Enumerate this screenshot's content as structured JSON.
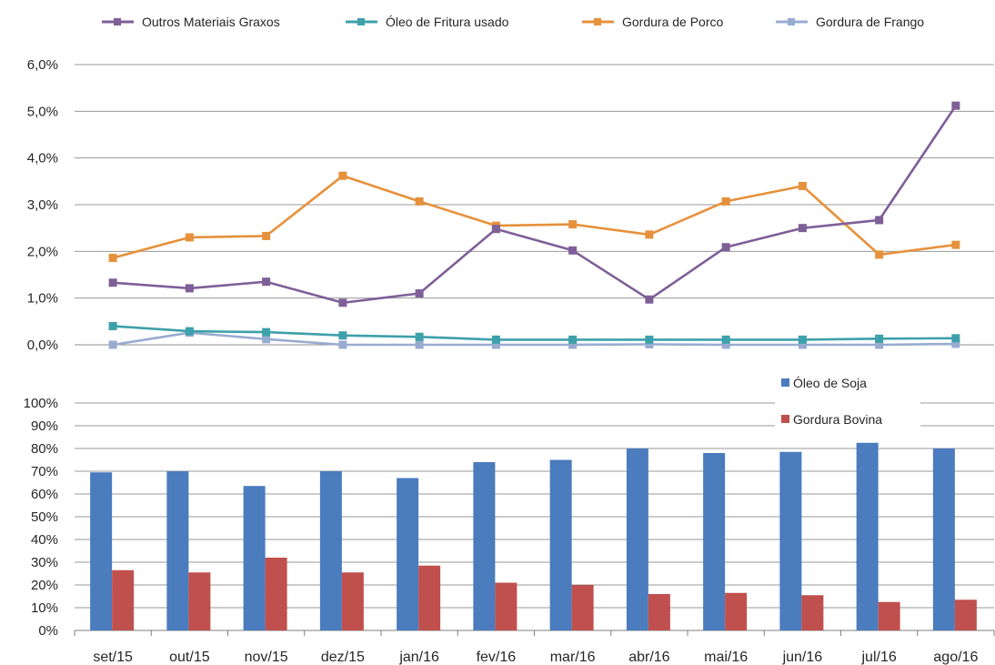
{
  "chart_data": [
    {
      "type": "line",
      "categories": [
        "set/15",
        "out/15",
        "nov/15",
        "dez/15",
        "jan/16",
        "fev/16",
        "mar/16",
        "abr/16",
        "mai/16",
        "jun/16",
        "jul/16",
        "ago/16"
      ],
      "ylim": [
        0,
        6
      ],
      "yticks": [
        "0,0%",
        "1,0%",
        "2,0%",
        "3,0%",
        "4,0%",
        "5,0%",
        "6,0%"
      ],
      "grid": true,
      "legend_position": "top",
      "series": [
        {
          "name": "Outros Materiais Graxos",
          "color": "#7e5f98",
          "values": [
            1.33,
            1.21,
            1.35,
            0.9,
            1.1,
            2.48,
            2.02,
            0.97,
            2.09,
            2.5,
            2.67,
            5.12
          ]
        },
        {
          "name": "Óleo de Fritura usado",
          "color": "#3ea0aa",
          "values": [
            0.4,
            0.29,
            0.27,
            0.2,
            0.17,
            0.11,
            0.11,
            0.11,
            0.11,
            0.11,
            0.13,
            0.14
          ]
        },
        {
          "name": "Gordura de Porco",
          "color": "#e6913c",
          "values": [
            1.86,
            2.3,
            2.33,
            3.62,
            3.07,
            2.55,
            2.58,
            2.36,
            3.07,
            3.4,
            1.93,
            2.14
          ]
        },
        {
          "name": "Gordura de Frango",
          "color": "#98acd0",
          "values": [
            0.0,
            0.26,
            0.12,
            0.0,
            0.0,
            0.0,
            0.0,
            0.01,
            0.0,
            0.0,
            0.0,
            0.02
          ]
        }
      ]
    },
    {
      "type": "bar",
      "categories": [
        "set/15",
        "out/15",
        "nov/15",
        "dez/15",
        "jan/16",
        "fev/16",
        "mar/16",
        "abr/16",
        "mai/16",
        "jun/16",
        "jul/16",
        "ago/16"
      ],
      "ylim": [
        0,
        100
      ],
      "yticks": [
        "0%",
        "10%",
        "20%",
        "30%",
        "40%",
        "50%",
        "60%",
        "70%",
        "80%",
        "90%",
        "100%"
      ],
      "grid": true,
      "legend_position": "top-right",
      "series": [
        {
          "name": "Óleo de Soja",
          "color": "#4a7cbe",
          "values": [
            69.5,
            70.0,
            63.5,
            70.0,
            67.0,
            74.0,
            75.0,
            80.0,
            78.0,
            78.5,
            82.5,
            80.0
          ]
        },
        {
          "name": "Gordura Bovina",
          "color": "#c0504d",
          "values": [
            26.5,
            25.5,
            32.0,
            25.5,
            28.5,
            21.0,
            20.0,
            16.0,
            16.5,
            15.5,
            12.5,
            13.5
          ]
        }
      ]
    }
  ]
}
